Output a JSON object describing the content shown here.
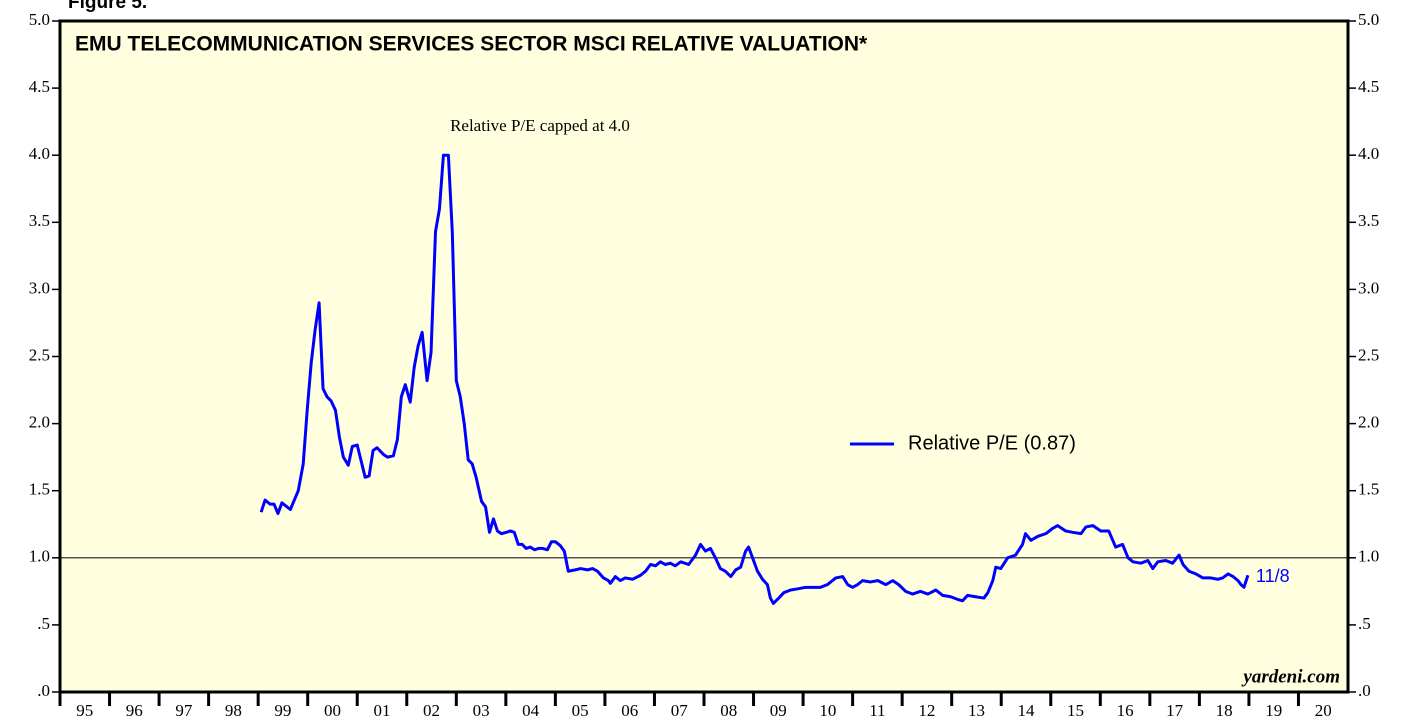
{
  "chart_data": {
    "type": "line",
    "figure_label": "Figure 5.",
    "title": "EMU TELECOMMUNICATION SERVICES SECTOR MSCI RELATIVE VALUATION*",
    "annotation": "Relative P/E capped at 4.0",
    "end_label": "11/8",
    "source": "yardeni.com",
    "x": [
      1999.06,
      1999.14,
      1999.24,
      1999.32,
      1999.4,
      1999.48,
      1999.65,
      1999.81,
      1999.91,
      1999.99,
      2000.07,
      2000.15,
      2000.23,
      2000.31,
      2000.39,
      2000.47,
      2000.56,
      2000.64,
      2000.72,
      2000.82,
      2000.9,
      2001.0,
      2001.08,
      2001.16,
      2001.24,
      2001.32,
      2001.4,
      2001.53,
      2001.61,
      2001.73,
      2001.81,
      2001.89,
      2001.97,
      2002.07,
      2002.15,
      2002.23,
      2002.31,
      2002.41,
      2002.49,
      2002.58,
      2002.66,
      2002.74,
      2002.84,
      2002.92,
      2003.0,
      2003.08,
      2003.16,
      2003.24,
      2003.32,
      2003.4,
      2003.51,
      2003.59,
      2003.67,
      2003.75,
      2003.83,
      2003.91,
      2004.01,
      2004.09,
      2004.17,
      2004.25,
      2004.33,
      2004.41,
      2004.49,
      2004.58,
      2004.66,
      2004.74,
      2004.84,
      2004.92,
      2005.0,
      2005.1,
      2005.18,
      2005.26,
      2005.4,
      2005.51,
      2005.65,
      2005.75,
      2005.85,
      2005.97,
      2006.07,
      2006.11,
      2006.21,
      2006.31,
      2006.41,
      2006.56,
      2006.72,
      2006.82,
      2006.92,
      2007.02,
      2007.12,
      2007.22,
      2007.32,
      2007.42,
      2007.53,
      2007.69,
      2007.83,
      2007.93,
      2008.03,
      2008.13,
      2008.23,
      2008.33,
      2008.43,
      2008.54,
      2008.64,
      2008.74,
      2008.84,
      2008.9,
      2008.98,
      2009.08,
      2009.18,
      2009.28,
      2009.34,
      2009.4,
      2009.51,
      2009.61,
      2009.75,
      2009.91,
      2010.05,
      2010.21,
      2010.35,
      2010.49,
      2010.66,
      2010.8,
      2010.9,
      2011.0,
      2011.1,
      2011.2,
      2011.36,
      2011.51,
      2011.67,
      2011.81,
      2011.93,
      2012.07,
      2012.21,
      2012.37,
      2012.52,
      2012.68,
      2012.82,
      2012.98,
      2013.12,
      2013.22,
      2013.32,
      2013.48,
      2013.65,
      2013.73,
      2013.83,
      2013.89,
      2013.99,
      2014.13,
      2014.29,
      2014.43,
      2014.49,
      2014.6,
      2014.74,
      2014.9,
      2015.04,
      2015.14,
      2015.3,
      2015.44,
      2015.61,
      2015.71,
      2015.85,
      2016.01,
      2016.17,
      2016.31,
      2016.45,
      2016.56,
      2016.66,
      2016.82,
      2016.96,
      2017.06,
      2017.16,
      2017.32,
      2017.46,
      2017.59,
      2017.67,
      2017.79,
      2017.93,
      2018.07,
      2018.23,
      2018.37,
      2018.47,
      2018.58,
      2018.68,
      2018.78,
      2018.84,
      2018.9,
      2018.98
    ],
    "series": [
      {
        "name": "Relative P/E (0.87)",
        "color": "#0000ff",
        "values": [
          1.34,
          1.43,
          1.4,
          1.4,
          1.33,
          1.41,
          1.36,
          1.5,
          1.7,
          2.1,
          2.45,
          2.7,
          2.9,
          2.26,
          2.2,
          2.17,
          2.1,
          1.9,
          1.75,
          1.69,
          1.83,
          1.84,
          1.72,
          1.6,
          1.61,
          1.8,
          1.82,
          1.77,
          1.75,
          1.76,
          1.88,
          2.2,
          2.29,
          2.16,
          2.42,
          2.58,
          2.68,
          2.32,
          2.53,
          3.43,
          3.6,
          4.0,
          4.0,
          3.42,
          2.32,
          2.2,
          2.0,
          1.73,
          1.7,
          1.6,
          1.42,
          1.38,
          1.19,
          1.29,
          1.2,
          1.18,
          1.19,
          1.2,
          1.19,
          1.1,
          1.1,
          1.07,
          1.08,
          1.06,
          1.07,
          1.07,
          1.06,
          1.12,
          1.12,
          1.09,
          1.05,
          0.9,
          0.91,
          0.92,
          0.91,
          0.92,
          0.9,
          0.85,
          0.83,
          0.81,
          0.86,
          0.83,
          0.85,
          0.84,
          0.87,
          0.9,
          0.95,
          0.94,
          0.97,
          0.95,
          0.96,
          0.94,
          0.97,
          0.95,
          1.02,
          1.1,
          1.05,
          1.07,
          1.0,
          0.92,
          0.9,
          0.86,
          0.91,
          0.93,
          1.05,
          1.08,
          1.0,
          0.9,
          0.84,
          0.8,
          0.7,
          0.66,
          0.7,
          0.74,
          0.76,
          0.77,
          0.78,
          0.78,
          0.78,
          0.8,
          0.85,
          0.86,
          0.8,
          0.78,
          0.8,
          0.83,
          0.82,
          0.83,
          0.8,
          0.83,
          0.8,
          0.75,
          0.73,
          0.75,
          0.73,
          0.76,
          0.72,
          0.71,
          0.69,
          0.68,
          0.72,
          0.71,
          0.7,
          0.74,
          0.83,
          0.93,
          0.92,
          1.0,
          1.02,
          1.1,
          1.18,
          1.13,
          1.16,
          1.18,
          1.22,
          1.24,
          1.2,
          1.19,
          1.18,
          1.23,
          1.24,
          1.2,
          1.2,
          1.08,
          1.1,
          1.0,
          0.97,
          0.96,
          0.98,
          0.92,
          0.97,
          0.98,
          0.96,
          1.02,
          0.95,
          0.9,
          0.88,
          0.85,
          0.85,
          0.84,
          0.85,
          0.88,
          0.86,
          0.83,
          0.8,
          0.78,
          0.87
        ]
      }
    ],
    "hline": 1,
    "xlim": [
      1995,
      2021
    ],
    "xticks": [
      {
        "value": 1995,
        "label": "95"
      },
      {
        "value": 1996,
        "label": "96"
      },
      {
        "value": 1997,
        "label": "97"
      },
      {
        "value": 1998,
        "label": "98"
      },
      {
        "value": 1999,
        "label": "99"
      },
      {
        "value": 2000,
        "label": "00"
      },
      {
        "value": 2001,
        "label": "01"
      },
      {
        "value": 2002,
        "label": "02"
      },
      {
        "value": 2003,
        "label": "03"
      },
      {
        "value": 2004,
        "label": "04"
      },
      {
        "value": 2005,
        "label": "05"
      },
      {
        "value": 2006,
        "label": "06"
      },
      {
        "value": 2007,
        "label": "07"
      },
      {
        "value": 2008,
        "label": "08"
      },
      {
        "value": 2009,
        "label": "09"
      },
      {
        "value": 2010,
        "label": "10"
      },
      {
        "value": 2011,
        "label": "11"
      },
      {
        "value": 2012,
        "label": "12"
      },
      {
        "value": 2013,
        "label": "13"
      },
      {
        "value": 2014,
        "label": "14"
      },
      {
        "value": 2015,
        "label": "15"
      },
      {
        "value": 2016,
        "label": "16"
      },
      {
        "value": 2017,
        "label": "17"
      },
      {
        "value": 2018,
        "label": "18"
      },
      {
        "value": 2019,
        "label": "19"
      },
      {
        "value": 2020,
        "label": "20"
      }
    ],
    "ylim": [
      0,
      5
    ],
    "yticks": [
      {
        "value": 0,
        "label": ".0"
      },
      {
        "value": 0.5,
        "label": ".5"
      },
      {
        "value": 1,
        "label": "1.0"
      },
      {
        "value": 1.5,
        "label": "1.5"
      },
      {
        "value": 2,
        "label": "2.0"
      },
      {
        "value": 2.5,
        "label": "2.5"
      },
      {
        "value": 3,
        "label": "3.0"
      },
      {
        "value": 3.5,
        "label": "3.5"
      },
      {
        "value": 4,
        "label": "4.0"
      },
      {
        "value": 4.5,
        "label": "4.5"
      },
      {
        "value": 5,
        "label": "5.0"
      }
    ],
    "y2lim": [
      0,
      5
    ],
    "y2ticks": [
      {
        "value": 0,
        "label": ".0"
      },
      {
        "value": 0.5,
        "label": ".5"
      },
      {
        "value": 1,
        "label": "1.0"
      },
      {
        "value": 1.5,
        "label": "1.5"
      },
      {
        "value": 2,
        "label": "2.0"
      },
      {
        "value": 2.5,
        "label": "2.5"
      },
      {
        "value": 3,
        "label": "3.0"
      },
      {
        "value": 3.5,
        "label": "3.5"
      },
      {
        "value": 4,
        "label": "4.0"
      },
      {
        "value": 4.5,
        "label": "4.5"
      },
      {
        "value": 5,
        "label": "5.0"
      }
    ],
    "plot_background": "#ffffe0"
  }
}
